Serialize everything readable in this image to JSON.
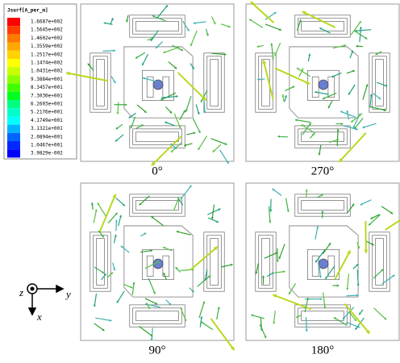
{
  "legend": {
    "title": "Jsurf[A_per_m]",
    "labels": [
      "1.6687e+002",
      "1.5645e+002",
      "1.4602e+002",
      "1.3559e+002",
      "1.2517e+002",
      "1.1474e+002",
      "1.0431e+002",
      "9.3884e+001",
      "8.3457e+001",
      "7.3030e+001",
      "6.2603e+001",
      "5.2176e+001",
      "4.1749e+001",
      "3.1321e+001",
      "2.0894e+001",
      "1.0467e+001",
      "3.9829e-002"
    ]
  },
  "panels": [
    {
      "caption": "0°"
    },
    {
      "caption": "270°"
    },
    {
      "caption": "90°"
    },
    {
      "caption": "180°"
    }
  ],
  "axes": {
    "z": "z",
    "y": "y",
    "x": "x"
  }
}
